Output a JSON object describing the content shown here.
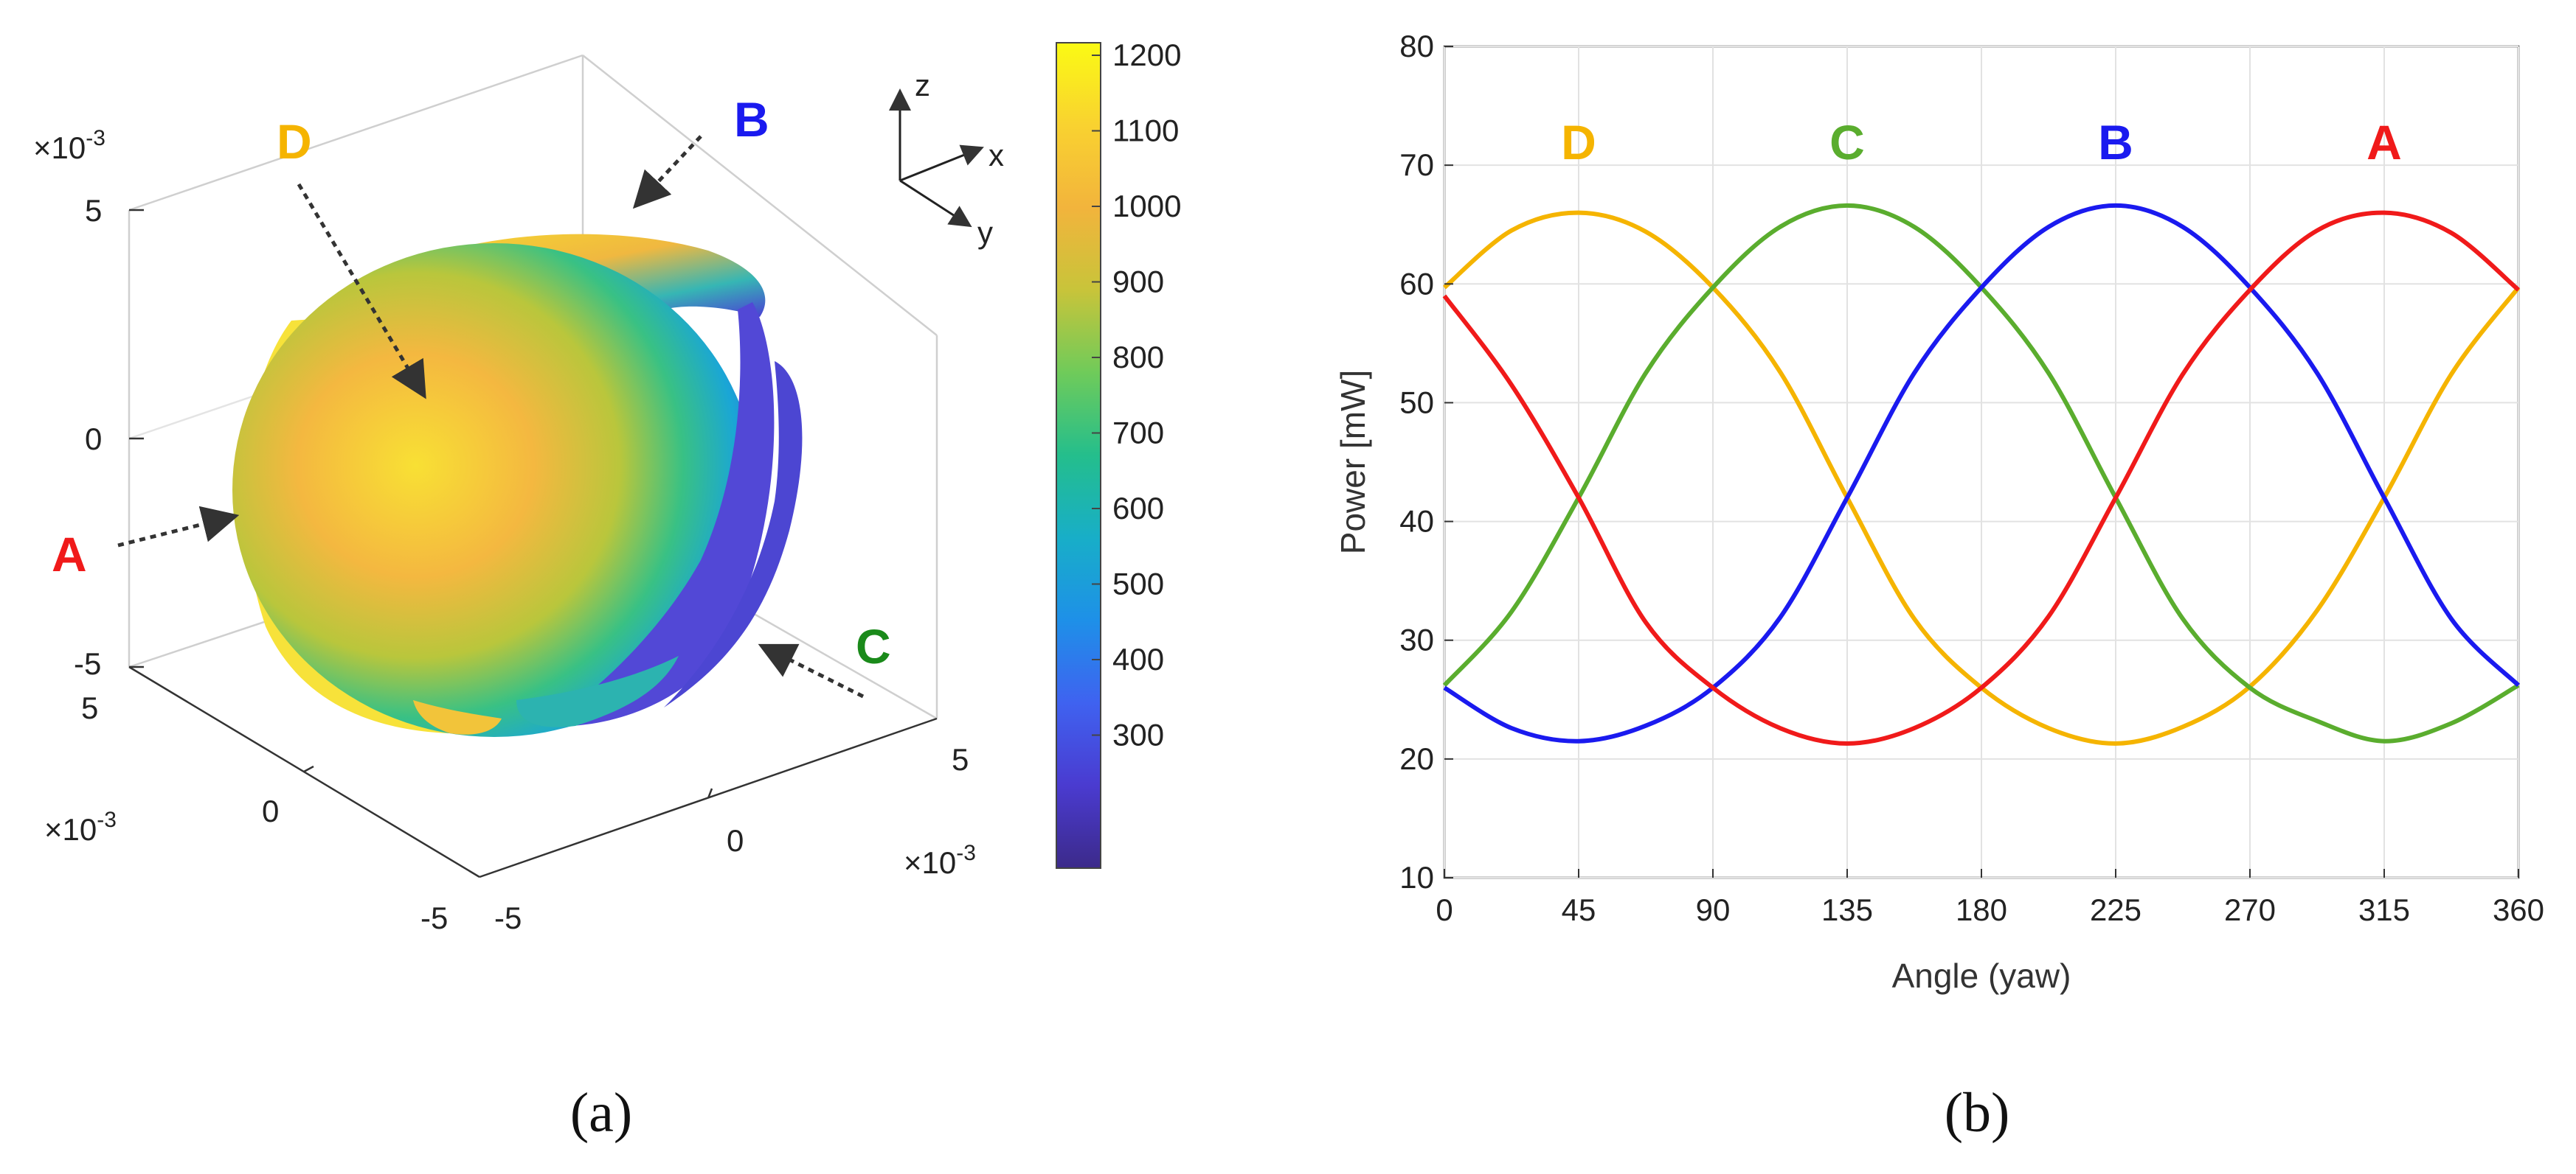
{
  "captions": {
    "left": "(a)",
    "right": "(b)"
  },
  "panel_a": {
    "type": "3d-scatter-surface",
    "labels": {
      "A": {
        "text": "A",
        "color": "#f01a1a"
      },
      "B": {
        "text": "B",
        "color": "#1a1aef"
      },
      "C": {
        "text": "C",
        "color": "#1a8a1a"
      },
      "D": {
        "text": "D",
        "color": "#f5b400"
      }
    },
    "exponent_z": "×10-3",
    "exponent_x": "×10-3",
    "exponent_y": "×10-3",
    "z_ticks": [
      "5",
      "0",
      "-5"
    ],
    "x_ticks": [
      "5",
      "0",
      "-5"
    ],
    "y_ticks": [
      "5",
      "0",
      "-5"
    ],
    "axis_triad": {
      "z": "z",
      "x": "x",
      "y": "y"
    },
    "colorbar": {
      "ticks": [
        "1200",
        "1100",
        "1000",
        "900",
        "800",
        "700",
        "600",
        "500",
        "400",
        "300"
      ],
      "stops": [
        "#fafa14",
        "#f9d230",
        "#f2b43c",
        "#c8c43a",
        "#6fcb5a",
        "#24be8c",
        "#18aec8",
        "#1e90e8",
        "#3f62f0",
        "#4a3bd0",
        "#3c2a8a"
      ]
    }
  },
  "chart_data": {
    "type": "line",
    "xlabel": "Angle (yaw)",
    "ylabel": "Power [mW]",
    "xlim": [
      0,
      360
    ],
    "ylim": [
      10,
      80
    ],
    "xticks": [
      0,
      45,
      90,
      135,
      180,
      225,
      270,
      315,
      360
    ],
    "yticks": [
      10,
      20,
      30,
      40,
      50,
      60,
      70,
      80
    ],
    "grid": true,
    "x": [
      0,
      22.5,
      45,
      67.5,
      90,
      112.5,
      135,
      157.5,
      180,
      202.5,
      225,
      247.5,
      270,
      292.5,
      315,
      337.5,
      360
    ],
    "series": [
      {
        "name": "D",
        "color": "#f5b400",
        "values": [
          59.7,
          64.5,
          66.0,
          64.4,
          59.7,
          52.6,
          42.0,
          31.8,
          26.0,
          22.6,
          21.3,
          22.7,
          26.1,
          32.5,
          42.0,
          52.4,
          59.7
        ]
      },
      {
        "name": "C",
        "color": "#5aad2e",
        "values": [
          26.2,
          32.4,
          42.0,
          52.5,
          59.7,
          64.8,
          66.6,
          64.8,
          59.7,
          52.5,
          42.0,
          31.8,
          26.0,
          23.2,
          21.5,
          23.0,
          26.2
        ]
      },
      {
        "name": "B",
        "color": "#1a1aef",
        "values": [
          26.0,
          22.6,
          21.5,
          22.8,
          26.0,
          31.9,
          42.0,
          52.5,
          59.7,
          64.8,
          66.6,
          64.8,
          59.7,
          52.5,
          42.0,
          31.8,
          26.2
        ]
      },
      {
        "name": "A",
        "color": "#f01a1a",
        "values": [
          59.0,
          51.5,
          42.0,
          31.5,
          26.0,
          22.6,
          21.3,
          22.6,
          26.0,
          32.0,
          42.0,
          52.4,
          59.5,
          64.5,
          66.0,
          64.3,
          59.5
        ]
      }
    ],
    "label_positions": [
      {
        "text": "D",
        "x": 45,
        "y": 70.5
      },
      {
        "text": "C",
        "x": 135,
        "y": 70.5
      },
      {
        "text": "B",
        "x": 225,
        "y": 70.5
      },
      {
        "text": "A",
        "x": 315,
        "y": 70.5
      }
    ]
  }
}
